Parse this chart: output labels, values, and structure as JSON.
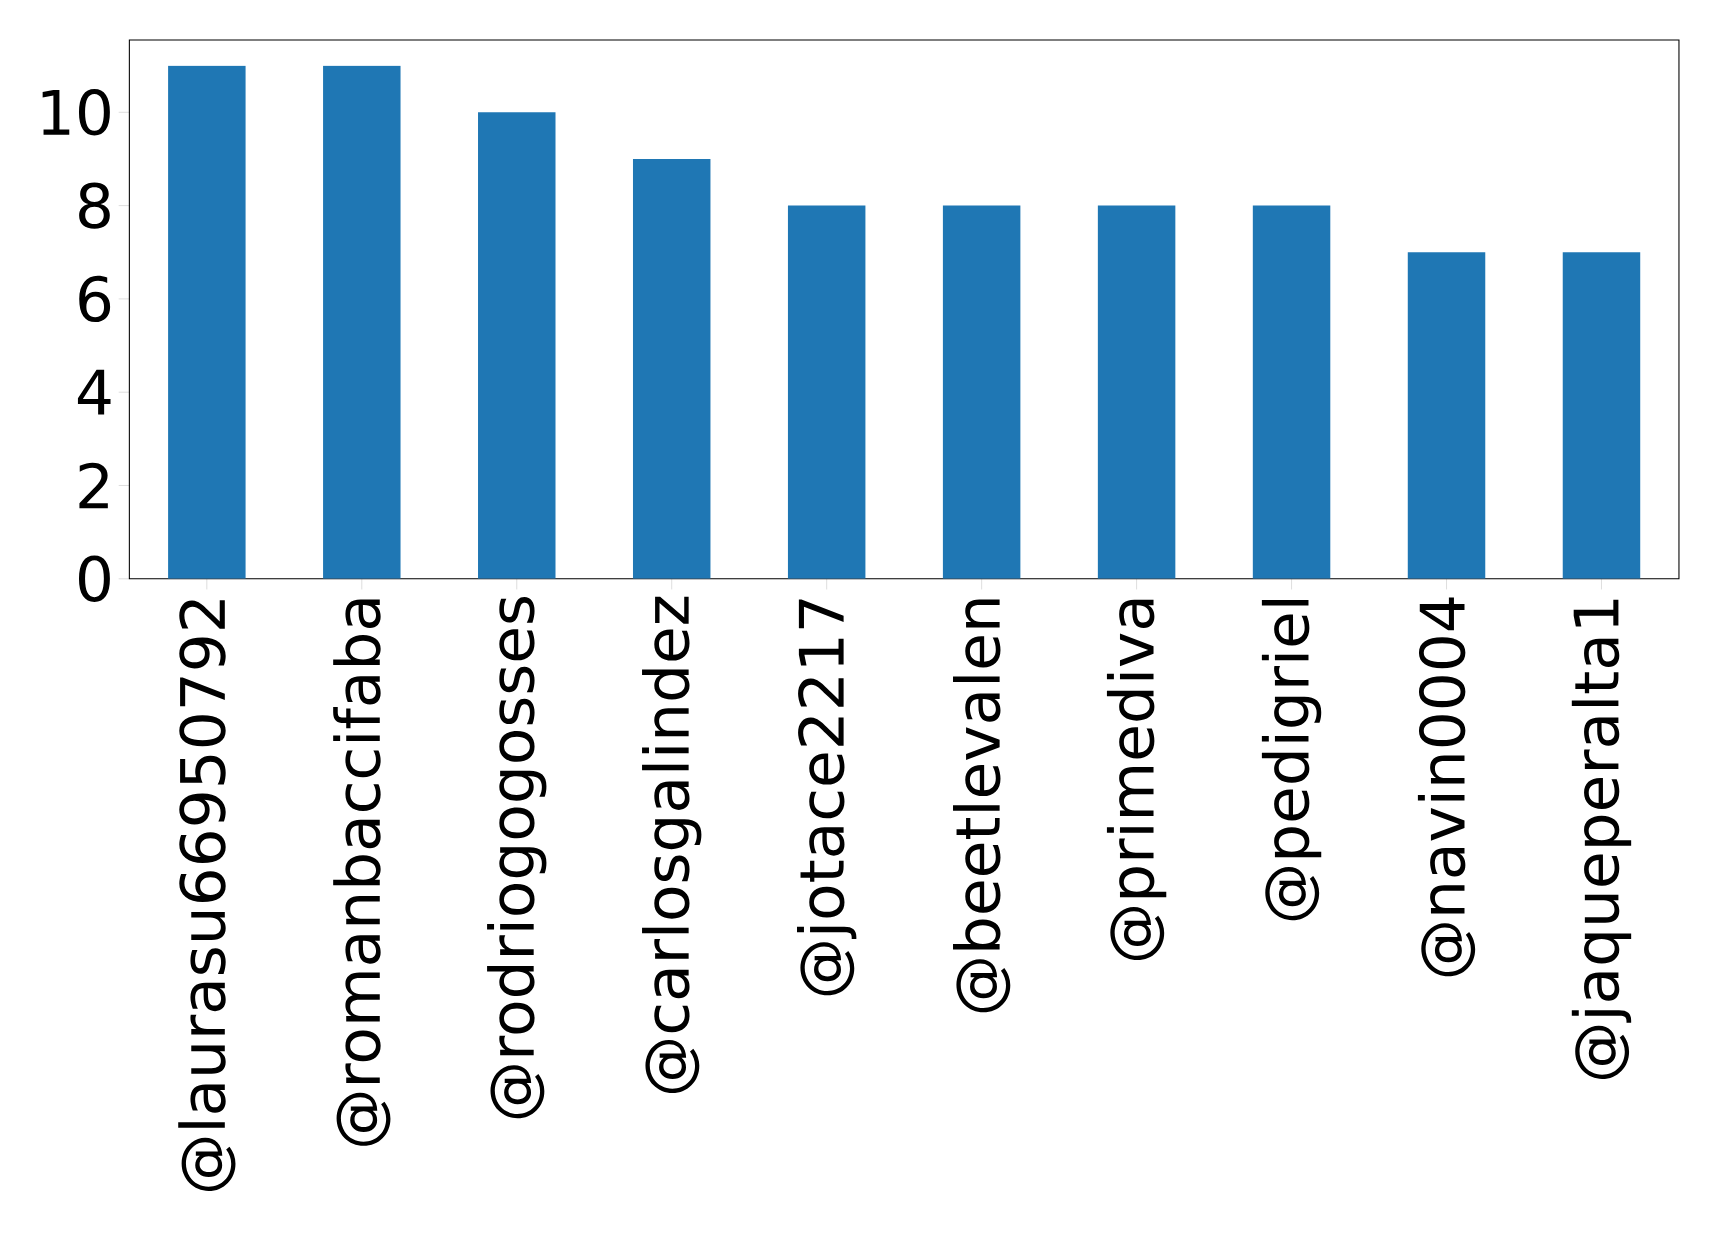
{
  "chart_data": {
    "type": "bar",
    "categories": [
      "@laurasu66950792",
      "@romanbaccifaba",
      "@rodriogogosses",
      "@carlosgalindez",
      "@jotace2217",
      "@beetlevalen",
      "@primediva",
      "@pedigriel",
      "@navin0004",
      "@jaqueperalta1"
    ],
    "values": [
      11,
      11,
      10,
      9,
      8,
      8,
      8,
      8,
      7,
      7
    ],
    "color": "#1f77b4",
    "ylim": [
      0,
      11.55
    ],
    "yticks": [
      0,
      2,
      4,
      6,
      8,
      10
    ]
  }
}
